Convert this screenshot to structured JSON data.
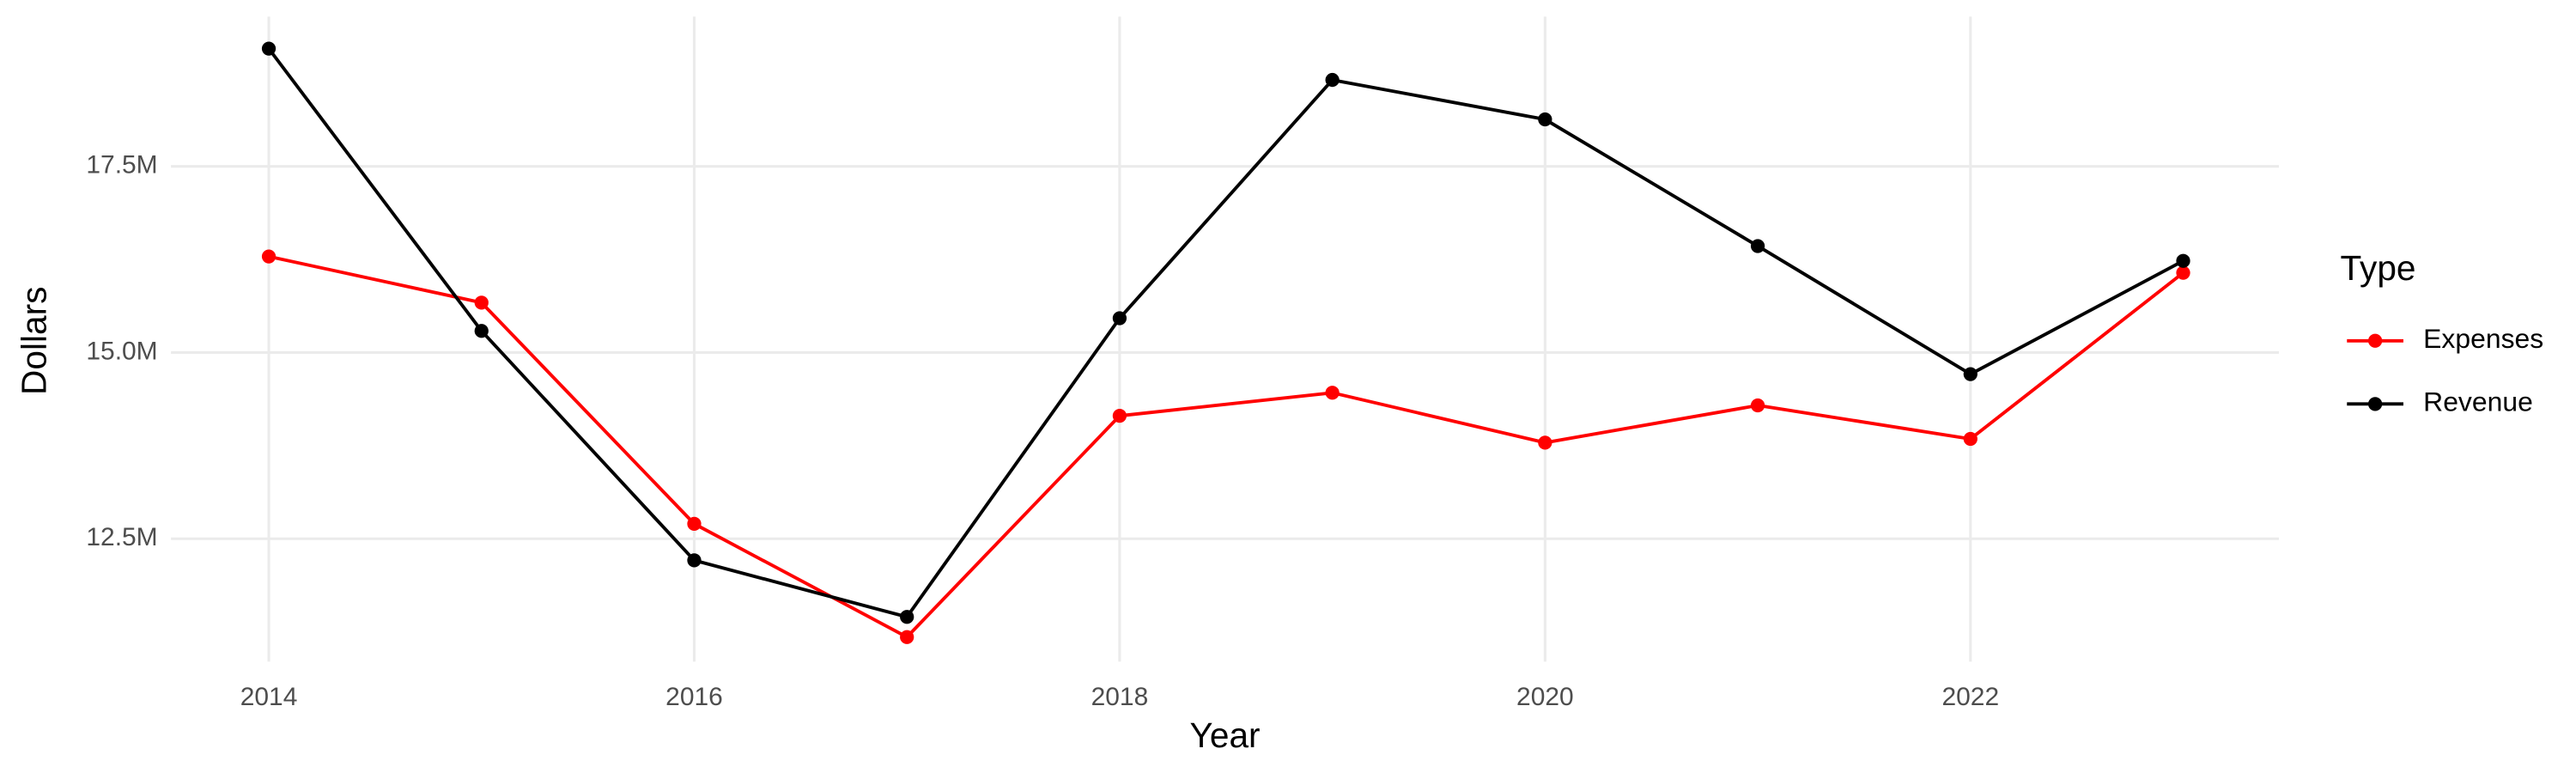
{
  "chart_data": {
    "type": "line",
    "x_label": "Year",
    "y_label": "Dollars",
    "legend_title": "Type",
    "x": [
      2014,
      2015,
      2016,
      2017,
      2018,
      2019,
      2020,
      2021,
      2022,
      2023
    ],
    "series": [
      {
        "name": "Expenses",
        "color": "#ff0000",
        "values": [
          16290000,
          15670000,
          12700000,
          11180000,
          14150000,
          14460000,
          13790000,
          14290000,
          13840000,
          16070000
        ]
      },
      {
        "name": "Revenue",
        "color": "#000000",
        "values": [
          19080000,
          15290000,
          12210000,
          11450000,
          15460000,
          18660000,
          18130000,
          16430000,
          14710000,
          16230000
        ]
      }
    ],
    "xlim": [
      2013.54,
      2023.45
    ],
    "xticks": [
      2014,
      2016,
      2018,
      2020,
      2022
    ],
    "ylim": [
      10850000,
      19510000
    ],
    "yticks": [
      {
        "value": 12500000,
        "label": "12.5M"
      },
      {
        "value": 15000000,
        "label": "15.0M"
      },
      {
        "value": 17500000,
        "label": "17.5M"
      }
    ],
    "grid": true,
    "legend_position": "right"
  }
}
